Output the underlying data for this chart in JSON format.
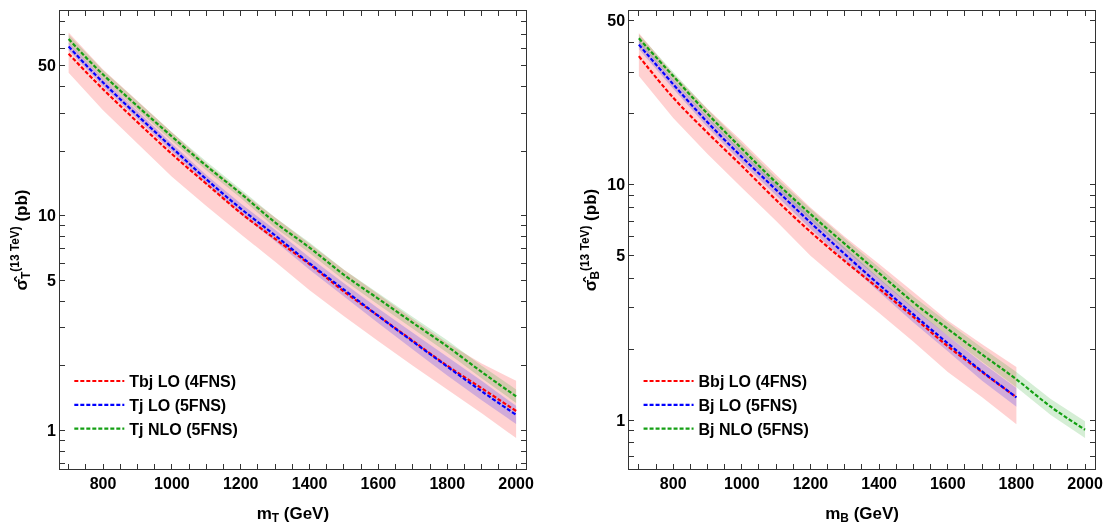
{
  "chart_data": [
    {
      "type": "line",
      "xlabel": "m$_{T}$ (GeV)",
      "ylabel": "σ̂$_{T}$$^{(13 TeV)}$ (pb)",
      "log": "y",
      "legend": "bottom left",
      "line_style": "dashed",
      "x": [
        700,
        800,
        1000,
        1100,
        1200,
        1300,
        1400,
        1500,
        1600,
        1700,
        1800,
        1900,
        2000
      ],
      "xlim": [
        675,
        2028
      ],
      "ylim": [
        0.66,
        90
      ],
      "xticks": [
        {
          "value": 700,
          "label": null
        },
        {
          "value": 750,
          "label": null
        },
        800,
        {
          "value": 850,
          "label": null
        },
        {
          "value": 900,
          "label": null
        },
        {
          "value": 950,
          "label": null
        },
        1000,
        {
          "value": 1050,
          "label": null
        },
        {
          "value": 1100,
          "label": null
        },
        {
          "value": 1150,
          "label": null
        },
        1200,
        {
          "value": 1250,
          "label": null
        },
        {
          "value": 1300,
          "label": null
        },
        {
          "value": 1350,
          "label": null
        },
        1400,
        {
          "value": 1450,
          "label": null
        },
        {
          "value": 1500,
          "label": null
        },
        {
          "value": 1550,
          "label": null
        },
        1600,
        {
          "value": 1650,
          "label": null
        },
        {
          "value": 1700,
          "label": null
        },
        {
          "value": 1750,
          "label": null
        },
        1800,
        {
          "value": 1850,
          "label": null
        },
        {
          "value": 1900,
          "label": null
        },
        {
          "value": 1950,
          "label": null
        },
        2000
      ],
      "yticks": [
        {
          "value": 0.7,
          "label": null
        },
        {
          "value": 0.8,
          "label": null
        },
        {
          "value": 0.9,
          "label": null
        },
        1,
        {
          "value": 2,
          "label": null
        },
        {
          "value": 3,
          "label": null
        },
        {
          "value": 4,
          "label": null
        },
        5,
        {
          "value": 6,
          "label": null
        },
        {
          "value": 7,
          "label": null
        },
        {
          "value": 8,
          "label": null
        },
        {
          "value": 9,
          "label": null
        },
        10,
        {
          "value": 20,
          "label": null
        },
        {
          "value": 30,
          "label": null
        },
        {
          "value": 40,
          "label": null
        },
        50,
        {
          "value": 60,
          "label": null
        },
        {
          "value": 70,
          "label": null
        },
        {
          "value": 80,
          "label": null
        }
      ],
      "series": [
        {
          "name": "Tbj LO (4FNS)",
          "color": "#ff0000",
          "values": [
            56.9,
            38.9,
            19.4,
            14.1,
            10.3,
            7.8,
            5.94,
            4.43,
            3.41,
            2.61,
            2.0,
            1.57,
            1.23
          ],
          "upper": [
            71.4,
            48,
            24.5,
            17.5,
            13,
            9.8,
            7.4,
            5.6,
            4.3,
            3.3,
            2.55,
            2.05,
            1.7
          ],
          "lower": [
            46.4,
            31,
            15.2,
            11.1,
            8.2,
            6.1,
            4.5,
            3.4,
            2.6,
            2.0,
            1.55,
            1.2,
            0.92
          ]
        },
        {
          "name": "Tj LO (5FNS)",
          "color": "#0000ff",
          "values": [
            61.5,
            41.8,
            20.8,
            14.8,
            10.8,
            8.1,
            6.0,
            4.52,
            3.41,
            2.59,
            1.98,
            1.52,
            1.18
          ],
          "upper": [
            64,
            43.5,
            21.7,
            15.5,
            11.4,
            8.6,
            6.4,
            4.85,
            3.7,
            2.85,
            2.2,
            1.7,
            1.3
          ],
          "lower": [
            59,
            40,
            19.9,
            14.1,
            10.2,
            7.6,
            5.6,
            4.2,
            3.15,
            2.38,
            1.8,
            1.38,
            1.07
          ]
        },
        {
          "name": "Tj NLO (5FNS)",
          "color": "#14a014",
          "values": [
            66.6,
            45.5,
            23.4,
            17.1,
            12.7,
            9.3,
            7.1,
            5.3,
            4.1,
            3.17,
            2.46,
            1.87,
            1.44
          ],
          "upper": [
            70,
            47.7,
            24.5,
            17.9,
            13.3,
            9.8,
            7.5,
            5.6,
            4.35,
            3.37,
            2.63,
            2.0,
            1.55
          ],
          "lower": [
            63.5,
            43.4,
            22.3,
            16.3,
            12.1,
            8.8,
            6.7,
            5.0,
            3.85,
            2.97,
            2.3,
            1.75,
            1.34
          ]
        }
      ]
    },
    {
      "type": "line",
      "xlabel": "m$_{B}$ (GeV)",
      "ylabel": "σ̂$_{B}$$^{(13 TeV)}$ (pb)",
      "log": "y",
      "legend": "bottom left",
      "line_style": "dashed",
      "xlim": [
        672,
        2029
      ],
      "ylim": [
        0.62,
        54.6
      ],
      "xticks": [
        {
          "value": 700,
          "label": null
        },
        {
          "value": 750,
          "label": null
        },
        800,
        {
          "value": 850,
          "label": null
        },
        {
          "value": 900,
          "label": null
        },
        {
          "value": 950,
          "label": null
        },
        1000,
        {
          "value": 1050,
          "label": null
        },
        {
          "value": 1100,
          "label": null
        },
        {
          "value": 1150,
          "label": null
        },
        1200,
        {
          "value": 1250,
          "label": null
        },
        {
          "value": 1300,
          "label": null
        },
        {
          "value": 1350,
          "label": null
        },
        1400,
        {
          "value": 1450,
          "label": null
        },
        {
          "value": 1500,
          "label": null
        },
        {
          "value": 1550,
          "label": null
        },
        1600,
        {
          "value": 1650,
          "label": null
        },
        {
          "value": 1700,
          "label": null
        },
        {
          "value": 1750,
          "label": null
        },
        1800,
        {
          "value": 1850,
          "label": null
        },
        {
          "value": 1900,
          "label": null
        },
        {
          "value": 1950,
          "label": null
        },
        2000
      ],
      "yticks": [
        {
          "value": 0.7,
          "label": null
        },
        {
          "value": 0.8,
          "label": null
        },
        {
          "value": 0.9,
          "label": null
        },
        1,
        {
          "value": 2,
          "label": null
        },
        {
          "value": 3,
          "label": null
        },
        {
          "value": 4,
          "label": null
        },
        5,
        {
          "value": 6,
          "label": null
        },
        {
          "value": 7,
          "label": null
        },
        {
          "value": 8,
          "label": null
        },
        {
          "value": 9,
          "label": null
        },
        10,
        {
          "value": 20,
          "label": null
        },
        {
          "value": 30,
          "label": null
        },
        {
          "value": 40,
          "label": null
        },
        50
      ],
      "series": [
        {
          "name": "Bbj LO (4FNS)",
          "color": "#ff0000",
          "x": [
            700,
            800,
            900,
            1000,
            1100,
            1200,
            1300,
            1400,
            1500,
            1600,
            1700,
            1800
          ],
          "values": [
            35.1,
            23.4,
            16.6,
            12.0,
            8.6,
            6.3,
            4.73,
            3.61,
            2.74,
            2.06,
            1.6,
            1.25
          ],
          "upper": [
            44,
            29.5,
            21,
            15.3,
            11,
            8.0,
            6.0,
            4.6,
            3.5,
            2.65,
            2.1,
            1.68
          ],
          "lower": [
            28.9,
            19.2,
            13.5,
            9.7,
            7.0,
            4.99,
            3.75,
            2.85,
            2.15,
            1.6,
            1.25,
            0.96
          ]
        },
        {
          "name": "Bj LO (5FNS)",
          "color": "#0000ff",
          "x": [
            700,
            800,
            900,
            1000,
            1100,
            1200,
            1300,
            1400,
            1500,
            1600,
            1700,
            1800
          ],
          "values": [
            39.3,
            26.7,
            18.4,
            13.1,
            9.5,
            6.9,
            5.07,
            3.76,
            2.81,
            2.12,
            1.61,
            1.25
          ],
          "upper": [
            41,
            27.9,
            19.3,
            13.8,
            10.0,
            7.3,
            5.4,
            4.0,
            3.0,
            2.28,
            1.75,
            1.37
          ],
          "lower": [
            37.6,
            25.5,
            17.5,
            12.4,
            9.0,
            6.5,
            4.75,
            3.5,
            2.6,
            1.96,
            1.47,
            1.14
          ]
        },
        {
          "name": "Bj NLO (5FNS)",
          "color": "#14a014",
          "x": [
            700,
            800,
            900,
            1000,
            1100,
            1200,
            1300,
            1400,
            1500,
            1600,
            1700,
            1800,
            1900,
            2000
          ],
          "values": [
            41.8,
            28.9,
            20.0,
            14.2,
            10.2,
            7.5,
            5.6,
            4.21,
            3.16,
            2.44,
            1.9,
            1.49,
            1.14,
            0.91
          ],
          "upper": [
            43.5,
            30.1,
            20.9,
            14.9,
            10.7,
            7.9,
            5.9,
            4.45,
            3.35,
            2.6,
            2.03,
            1.6,
            1.23,
            0.99
          ],
          "lower": [
            40,
            27.7,
            19.1,
            13.5,
            9.7,
            7.1,
            5.3,
            3.97,
            2.97,
            2.28,
            1.77,
            1.38,
            1.05,
            0.84
          ]
        }
      ]
    }
  ]
}
